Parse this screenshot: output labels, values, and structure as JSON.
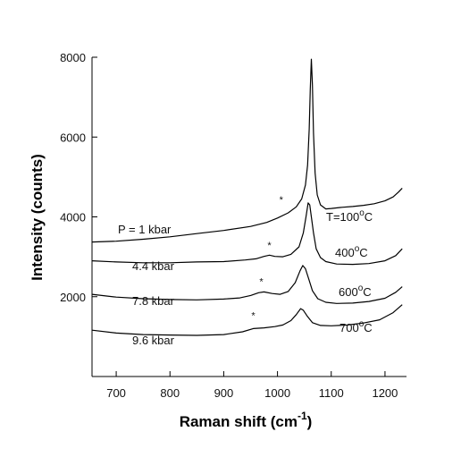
{
  "chart_data": {
    "type": "line",
    "xlabel": "Raman shift (cm",
    "xlabel_sup": "-1",
    "xlabel_end": ")",
    "ylabel": "Intensity (counts)",
    "xlim": [
      655,
      1240
    ],
    "ylim": [
      0,
      8000
    ],
    "x_ticks": [
      700,
      800,
      900,
      1000,
      1100,
      1200
    ],
    "y_ticks": [
      2000,
      4000,
      6000,
      8000
    ],
    "grid": false,
    "series": [
      {
        "temp_label": "T=100",
        "temp_sup": "o",
        "temp_unit": "C",
        "pressure_label": "P = 1 kbar",
        "peak_marker": "*",
        "marker_x": 1007,
        "marker_y": 4350,
        "points": [
          [
            655,
            3370
          ],
          [
            700,
            3390
          ],
          [
            750,
            3440
          ],
          [
            800,
            3500
          ],
          [
            850,
            3580
          ],
          [
            900,
            3660
          ],
          [
            950,
            3760
          ],
          [
            980,
            3860
          ],
          [
            1000,
            3970
          ],
          [
            1020,
            4100
          ],
          [
            1035,
            4250
          ],
          [
            1045,
            4450
          ],
          [
            1052,
            4800
          ],
          [
            1056,
            5300
          ],
          [
            1059,
            6200
          ],
          [
            1061,
            7200
          ],
          [
            1063,
            7950
          ],
          [
            1065,
            7300
          ],
          [
            1067,
            6100
          ],
          [
            1070,
            5100
          ],
          [
            1074,
            4550
          ],
          [
            1080,
            4300
          ],
          [
            1090,
            4200
          ],
          [
            1100,
            4210
          ],
          [
            1120,
            4240
          ],
          [
            1140,
            4260
          ],
          [
            1160,
            4290
          ],
          [
            1180,
            4330
          ],
          [
            1200,
            4400
          ],
          [
            1215,
            4500
          ],
          [
            1225,
            4620
          ],
          [
            1232,
            4720
          ]
        ]
      },
      {
        "temp_label": "400",
        "temp_sup": "o",
        "temp_unit": "C",
        "pressure_label": "4.4 kbar",
        "peak_marker": "*",
        "marker_x": 985,
        "marker_y": 3200,
        "points": [
          [
            655,
            2900
          ],
          [
            700,
            2870
          ],
          [
            750,
            2850
          ],
          [
            800,
            2850
          ],
          [
            850,
            2870
          ],
          [
            900,
            2880
          ],
          [
            940,
            2920
          ],
          [
            960,
            2950
          ],
          [
            975,
            3010
          ],
          [
            985,
            3040
          ],
          [
            995,
            3010
          ],
          [
            1010,
            3000
          ],
          [
            1025,
            3060
          ],
          [
            1040,
            3250
          ],
          [
            1048,
            3600
          ],
          [
            1053,
            4000
          ],
          [
            1057,
            4350
          ],
          [
            1060,
            4300
          ],
          [
            1063,
            4000
          ],
          [
            1067,
            3600
          ],
          [
            1072,
            3200
          ],
          [
            1080,
            2980
          ],
          [
            1090,
            2880
          ],
          [
            1110,
            2820
          ],
          [
            1140,
            2810
          ],
          [
            1170,
            2830
          ],
          [
            1200,
            2900
          ],
          [
            1220,
            3030
          ],
          [
            1232,
            3200
          ]
        ]
      },
      {
        "temp_label": "600",
        "temp_sup": "o",
        "temp_unit": "C",
        "pressure_label": "7.8 kbar",
        "peak_marker": "*",
        "marker_x": 970,
        "marker_y": 2300,
        "points": [
          [
            655,
            2060
          ],
          [
            700,
            1990
          ],
          [
            750,
            1950
          ],
          [
            800,
            1930
          ],
          [
            850,
            1920
          ],
          [
            900,
            1940
          ],
          [
            930,
            1970
          ],
          [
            950,
            2030
          ],
          [
            965,
            2100
          ],
          [
            975,
            2120
          ],
          [
            990,
            2080
          ],
          [
            1005,
            2060
          ],
          [
            1020,
            2130
          ],
          [
            1033,
            2350
          ],
          [
            1042,
            2650
          ],
          [
            1047,
            2780
          ],
          [
            1052,
            2700
          ],
          [
            1058,
            2450
          ],
          [
            1065,
            2150
          ],
          [
            1075,
            1950
          ],
          [
            1090,
            1860
          ],
          [
            1110,
            1830
          ],
          [
            1140,
            1840
          ],
          [
            1170,
            1880
          ],
          [
            1200,
            1960
          ],
          [
            1220,
            2110
          ],
          [
            1232,
            2250
          ]
        ]
      },
      {
        "temp_label": "700",
        "temp_sup": "o",
        "temp_unit": "C",
        "pressure_label": "9.6 kbar",
        "peak_marker": "*",
        "marker_x": 955,
        "marker_y": 1450,
        "points": [
          [
            655,
            1160
          ],
          [
            700,
            1090
          ],
          [
            750,
            1050
          ],
          [
            800,
            1040
          ],
          [
            850,
            1030
          ],
          [
            900,
            1050
          ],
          [
            935,
            1120
          ],
          [
            955,
            1200
          ],
          [
            975,
            1220
          ],
          [
            995,
            1250
          ],
          [
            1010,
            1290
          ],
          [
            1025,
            1400
          ],
          [
            1035,
            1550
          ],
          [
            1043,
            1700
          ],
          [
            1048,
            1660
          ],
          [
            1055,
            1520
          ],
          [
            1065,
            1350
          ],
          [
            1080,
            1280
          ],
          [
            1100,
            1270
          ],
          [
            1130,
            1290
          ],
          [
            1160,
            1340
          ],
          [
            1190,
            1420
          ],
          [
            1215,
            1600
          ],
          [
            1232,
            1800
          ]
        ]
      }
    ]
  }
}
